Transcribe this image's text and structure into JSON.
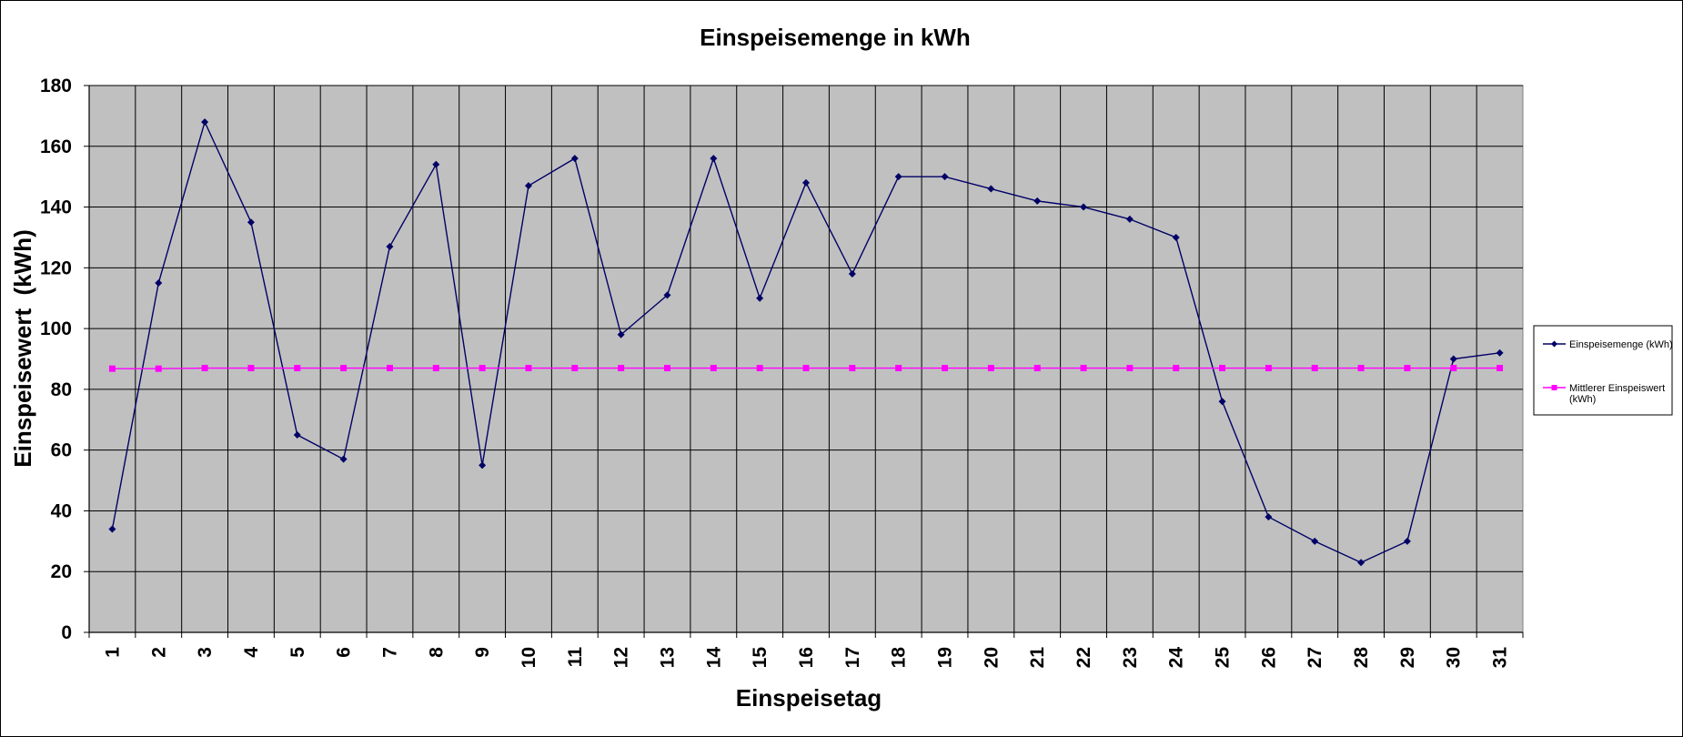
{
  "chart_data": {
    "type": "line",
    "title": "Einspeisemenge in kWh",
    "xlabel": "Einspeisetag",
    "ylabel": "Einspeisewert  (kWh)",
    "categories": [
      "1",
      "2",
      "3",
      "4",
      "5",
      "6",
      "7",
      "8",
      "9",
      "10",
      "11",
      "12",
      "13",
      "14",
      "15",
      "16",
      "17",
      "18",
      "19",
      "20",
      "21",
      "22",
      "23",
      "24",
      "25",
      "26",
      "27",
      "28",
      "29",
      "30",
      "31"
    ],
    "ylim": [
      0,
      180
    ],
    "yticks": [
      "0",
      "20",
      "40",
      "60",
      "80",
      "100",
      "120",
      "140",
      "160",
      "180"
    ],
    "grid": true,
    "legend_position": "right",
    "series": [
      {
        "name": "Einspeisemenge (kWh)",
        "color": "#000066",
        "marker": "diamond",
        "values": [
          34,
          115,
          168,
          135,
          65,
          57,
          127,
          154,
          55,
          147,
          156,
          98,
          111,
          156,
          110,
          148,
          118,
          150,
          150,
          146,
          142,
          140,
          136,
          130,
          76,
          38,
          30,
          23,
          30,
          90,
          92
        ]
      },
      {
        "name": "Mittlerer Einspeiswert (kWh)",
        "legend_lines": [
          "Mittlerer Einspeiswert",
          "(kWh)"
        ],
        "color": "#FF00FF",
        "marker": "square",
        "values": [
          86.8,
          86.8,
          87,
          87,
          87,
          87,
          87,
          87,
          87,
          87,
          87,
          87,
          87,
          87,
          87,
          87,
          87,
          87,
          87,
          87,
          87,
          87,
          87,
          87,
          87,
          87,
          87,
          87,
          87,
          87,
          87
        ]
      }
    ]
  }
}
